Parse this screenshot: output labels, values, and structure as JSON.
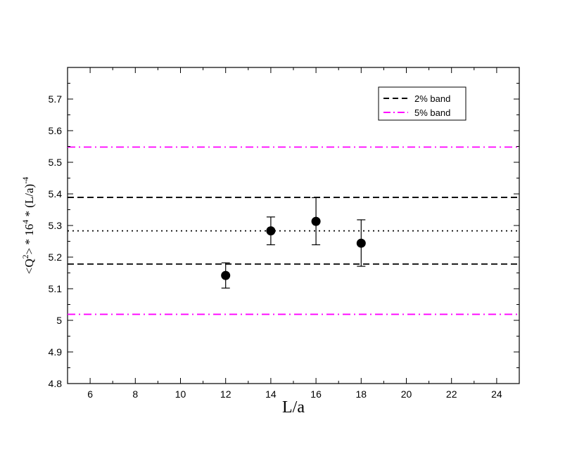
{
  "chart_data": {
    "type": "scatter",
    "xlabel": "L/a",
    "ylabel": {
      "base": "<Q",
      "sup1": "2",
      "mid": "> * 16",
      "sup2": "4",
      "mid2": " * (L/a)",
      "sup3": "-4"
    },
    "xlim": [
      5,
      25
    ],
    "ylim": [
      4.8,
      5.8
    ],
    "xticks": [
      6,
      8,
      10,
      12,
      14,
      16,
      18,
      20,
      22,
      24
    ],
    "yticks": [
      "4.8",
      "4.9",
      "5",
      "5.1",
      "5.2",
      "5.3",
      "5.4",
      "5.5",
      "5.6",
      "5.7"
    ],
    "points": [
      {
        "x": 12,
        "y": 5.142,
        "err_low": 5.102,
        "err_high": 5.182
      },
      {
        "x": 14,
        "y": 5.283,
        "err_low": 5.239,
        "err_high": 5.327
      },
      {
        "x": 16,
        "y": 5.313,
        "err_low": 5.239,
        "err_high": 5.388
      },
      {
        "x": 18,
        "y": 5.244,
        "err_low": 5.171,
        "err_high": 5.318
      }
    ],
    "reference_lines": [
      {
        "name": "2% band",
        "style": "dashed",
        "color": "#000000",
        "y": [
          5.178,
          5.389
        ]
      },
      {
        "name": "5% band",
        "style": "dashdot",
        "color": "#ff00ff",
        "y": [
          5.019,
          5.548
        ]
      },
      {
        "name": "",
        "style": "dotted",
        "color": "#000000",
        "y": [
          5.283
        ]
      }
    ],
    "legend": {
      "placement": "top-right",
      "entries": [
        {
          "label": "2% band",
          "style": "dashed",
          "color": "#000000"
        },
        {
          "label": "5% band",
          "style": "dashdot",
          "color": "#ff00ff"
        }
      ]
    },
    "grid": false
  }
}
